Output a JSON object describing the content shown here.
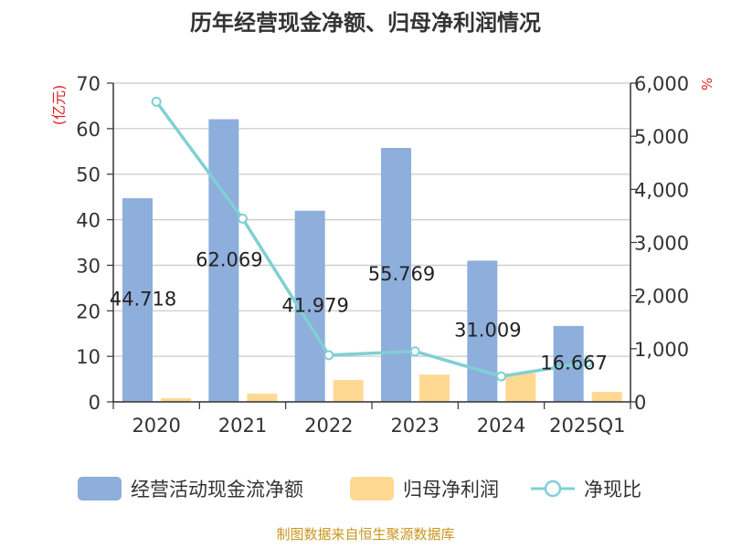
{
  "chart_data": {
    "type": "bar",
    "title": "历年经营现金净额、归母净利润情况",
    "categories": [
      "2020",
      "2021",
      "2022",
      "2023",
      "2024",
      "2025Q1"
    ],
    "series": [
      {
        "name": "经营活动现金流净额",
        "type": "bar",
        "axis": "left",
        "values": [
          44.718,
          62.069,
          41.979,
          55.769,
          31.009,
          16.667
        ],
        "labels": [
          "44.718",
          "62.069",
          "41.979",
          "55.769",
          "31.009",
          "16.667"
        ],
        "color": "#8eaedb"
      },
      {
        "name": "归母净利润",
        "type": "bar",
        "axis": "left",
        "values": [
          0.8,
          1.8,
          4.8,
          6.0,
          6.3,
          2.2
        ],
        "color": "#ffd992"
      },
      {
        "name": "净现比",
        "type": "line",
        "axis": "right",
        "values": [
          5650,
          3450,
          880,
          950,
          480,
          740
        ],
        "color": "#7fd0d4"
      }
    ],
    "y_left": {
      "label": "(亿元)",
      "min": 0,
      "max": 70,
      "ticks": [
        "0",
        "10",
        "20",
        "30",
        "40",
        "50",
        "60",
        "70"
      ]
    },
    "y_right": {
      "label": "%",
      "min": 0,
      "max": 6000,
      "ticks": [
        "0",
        "1,000",
        "2,000",
        "3,000",
        "4,000",
        "5,000",
        "6,000"
      ]
    },
    "grid": true,
    "legend": "bottom",
    "source": "制图数据来自恒生聚源数据库"
  }
}
